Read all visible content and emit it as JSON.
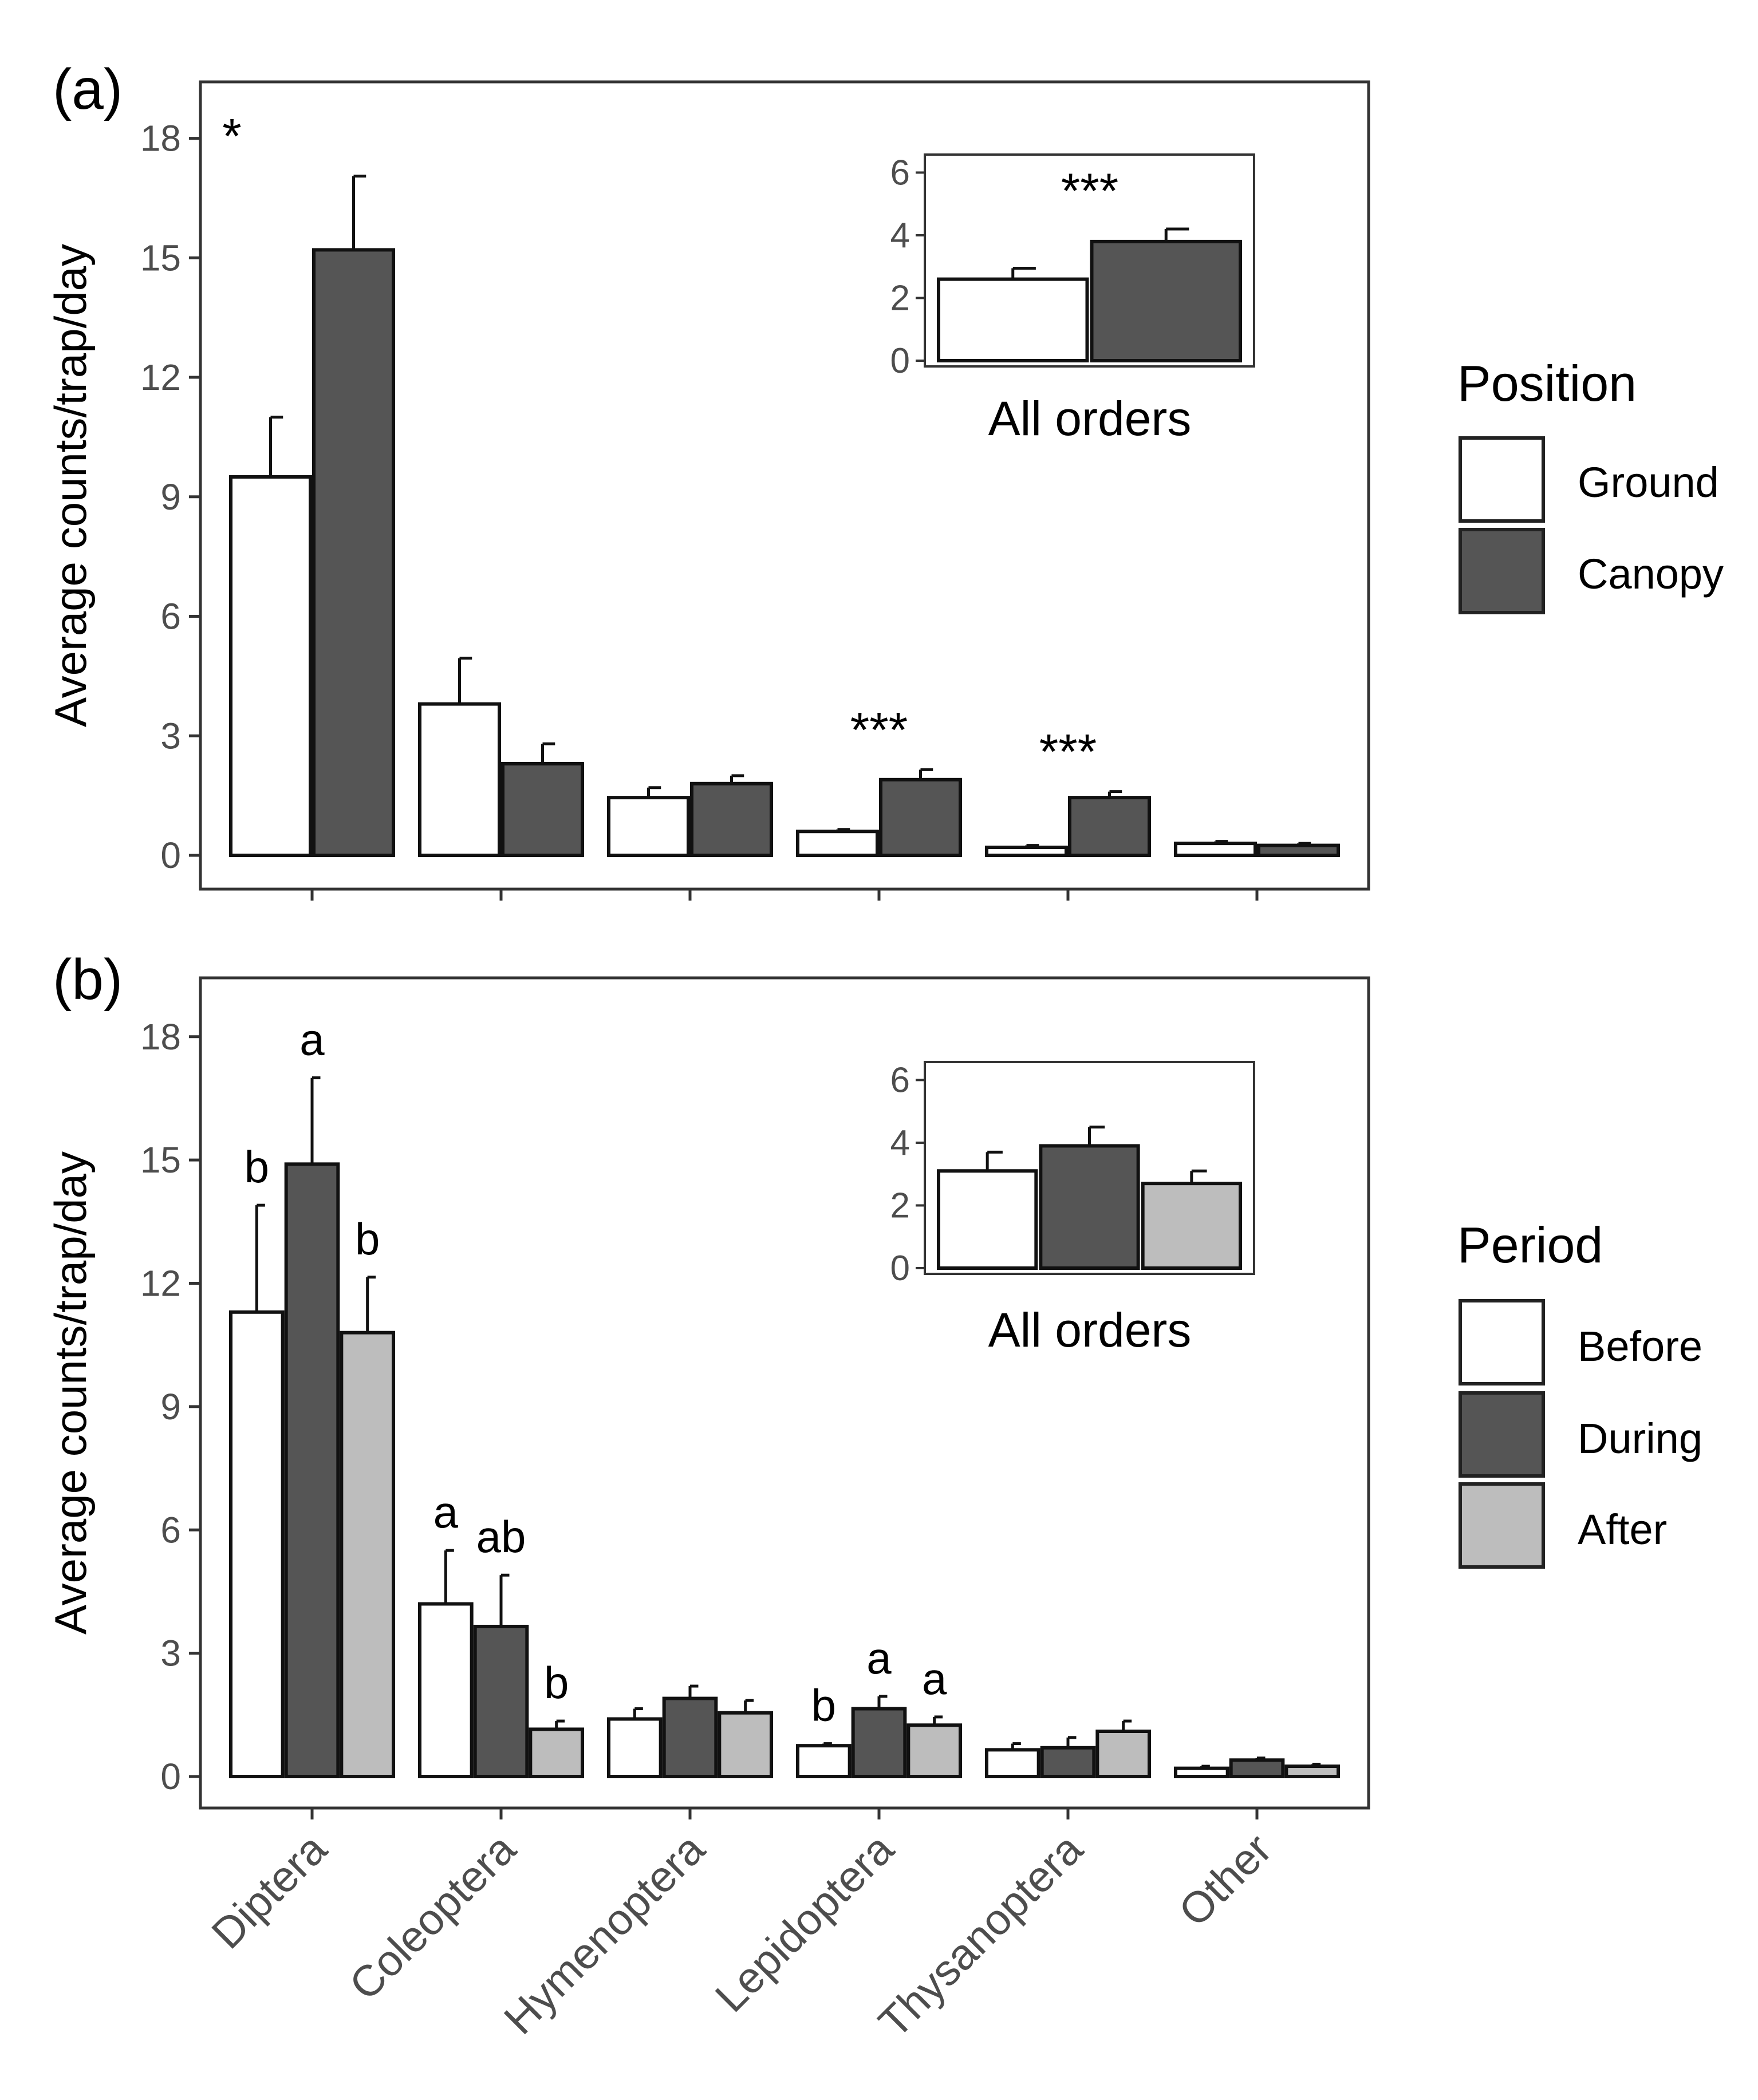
{
  "chart_data": [
    {
      "panel": "(a)",
      "type": "bar",
      "ylabel": "Average counts/trap/day",
      "ylim": [
        0,
        19
      ],
      "yticks": [
        0,
        3,
        6,
        9,
        12,
        15,
        18
      ],
      "categories": [
        "Diptera",
        "Coleoptera",
        "Hymenoptera",
        "Lepidoptera",
        "Thysanoptera",
        "Other"
      ],
      "series": [
        {
          "name": "Ground",
          "color": "#ffffff",
          "values": [
            9.5,
            3.8,
            1.45,
            0.6,
            0.2,
            0.3
          ],
          "errors": [
            1.5,
            1.15,
            0.25,
            0.05,
            0.05,
            0.05
          ]
        },
        {
          "name": "Canopy",
          "color": "#555555",
          "values": [
            15.2,
            2.3,
            1.8,
            1.9,
            1.45,
            0.25
          ],
          "errors": [
            1.85,
            0.5,
            0.2,
            0.25,
            0.15,
            0.05
          ]
        }
      ],
      "annotations": [
        "*",
        "",
        "",
        "***",
        "***",
        ""
      ],
      "legend": {
        "title": "Position",
        "labels": [
          "Ground",
          "Canopy"
        ]
      },
      "inset": {
        "xlabel": "All orders",
        "ylim": [
          0,
          6.3
        ],
        "yticks": [
          0,
          2,
          4,
          6
        ],
        "values": [
          2.6,
          3.8
        ],
        "errors": [
          0.35,
          0.4
        ],
        "annotation": "***"
      }
    },
    {
      "panel": "(b)",
      "type": "bar",
      "ylabel": "Average counts/trap/day",
      "ylim": [
        0,
        19
      ],
      "yticks": [
        0,
        3,
        6,
        9,
        12,
        15,
        18
      ],
      "categories": [
        "Diptera",
        "Coleoptera",
        "Hymenoptera",
        "Lepidoptera",
        "Thysanoptera",
        "Other"
      ],
      "series": [
        {
          "name": "Before",
          "color": "#ffffff",
          "values": [
            11.3,
            4.2,
            1.4,
            0.75,
            0.65,
            0.2
          ],
          "errors": [
            2.6,
            1.3,
            0.25,
            0.05,
            0.15,
            0.05
          ],
          "letters": [
            "b",
            "a",
            "",
            "b",
            "",
            ""
          ]
        },
        {
          "name": "During",
          "color": "#555555",
          "values": [
            14.9,
            3.65,
            1.9,
            1.65,
            0.7,
            0.4
          ],
          "errors": [
            2.1,
            1.25,
            0.3,
            0.3,
            0.25,
            0.05
          ],
          "letters": [
            "a",
            "ab",
            "",
            "a",
            "",
            ""
          ]
        },
        {
          "name": "After",
          "color": "#bdbdbd",
          "values": [
            10.8,
            1.15,
            1.55,
            1.25,
            1.1,
            0.25
          ],
          "errors": [
            1.35,
            0.2,
            0.3,
            0.2,
            0.25,
            0.05
          ],
          "letters": [
            "b",
            "b",
            "",
            "a",
            "",
            ""
          ]
        }
      ],
      "legend": {
        "title": "Period",
        "labels": [
          "Before",
          "During",
          "After"
        ]
      },
      "inset": {
        "xlabel": "All orders",
        "ylim": [
          0,
          6.3
        ],
        "yticks": [
          0,
          2,
          4,
          6
        ],
        "values": [
          3.1,
          3.9,
          2.7
        ],
        "errors": [
          0.6,
          0.6,
          0.4
        ]
      }
    }
  ]
}
